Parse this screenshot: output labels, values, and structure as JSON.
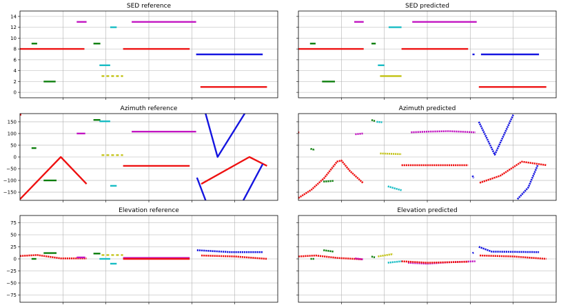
{
  "figure": {
    "titles": [
      "SED reference",
      "SED predicted",
      "Azimuth reference",
      "Azimuth predicted",
      "Elevation reference",
      "Elevation predicted"
    ]
  },
  "colors": {
    "red": "#ee1111",
    "green": "#0a7d0a",
    "magenta": "#c216c2",
    "cyan": "#17bcc4",
    "yellow": "#c4c41a",
    "blue": "#1515e0",
    "grid": "#b0b0b0"
  },
  "chart_data": [
    {
      "type": "scatter",
      "title": "SED reference",
      "xlim": [
        0,
        600
      ],
      "ylim": [
        -1,
        15
      ],
      "yticks": [
        0,
        2,
        4,
        6,
        8,
        10,
        12,
        14
      ],
      "xgrid": [
        100,
        200,
        300,
        400,
        500
      ],
      "grid": true,
      "segments": [
        {
          "color": "red",
          "x": [
            0,
            150
          ],
          "y": [
            8,
            8
          ]
        },
        {
          "color": "green",
          "x": [
            27,
            40
          ],
          "y": [
            9,
            9
          ]
        },
        {
          "color": "green",
          "x": [
            55,
            83
          ],
          "y": [
            2,
            2
          ]
        },
        {
          "color": "magenta",
          "x": [
            132,
            155
          ],
          "y": [
            13,
            13
          ]
        },
        {
          "color": "green",
          "x": [
            171,
            187
          ],
          "y": [
            9,
            9
          ]
        },
        {
          "color": "cyan",
          "x": [
            185,
            210
          ],
          "y": [
            5,
            5
          ]
        },
        {
          "color": "cyan",
          "x": [
            210,
            225
          ],
          "y": [
            12,
            12
          ]
        },
        {
          "color": "yellow",
          "x": [
            190,
            240
          ],
          "y": [
            3,
            3
          ],
          "dashed": true
        },
        {
          "color": "red",
          "x": [
            240,
            395
          ],
          "y": [
            8,
            8
          ]
        },
        {
          "color": "magenta",
          "x": [
            260,
            410
          ],
          "y": [
            13,
            13
          ]
        },
        {
          "color": "blue",
          "x": [
            410,
            565
          ],
          "y": [
            7,
            7
          ]
        },
        {
          "color": "red",
          "x": [
            420,
            575
          ],
          "y": [
            1,
            1
          ]
        }
      ]
    },
    {
      "type": "scatter",
      "title": "SED predicted",
      "xlim": [
        0,
        600
      ],
      "ylim": [
        -1,
        15
      ],
      "yticks": [
        0,
        2,
        4,
        6,
        8,
        10,
        12,
        14
      ],
      "xgrid": [
        100,
        200,
        300,
        400,
        500
      ],
      "grid": true,
      "segments": [
        {
          "color": "red",
          "x": [
            0,
            152
          ],
          "y": [
            8,
            8
          ]
        },
        {
          "color": "green",
          "x": [
            27,
            40
          ],
          "y": [
            9,
            9
          ]
        },
        {
          "color": "green",
          "x": [
            55,
            85
          ],
          "y": [
            2,
            2
          ]
        },
        {
          "color": "magenta",
          "x": [
            130,
            152
          ],
          "y": [
            13,
            13
          ]
        },
        {
          "color": "green",
          "x": [
            170,
            180
          ],
          "y": [
            9,
            9
          ]
        },
        {
          "color": "cyan",
          "x": [
            185,
            200
          ],
          "y": [
            5,
            5
          ]
        },
        {
          "color": "cyan",
          "x": [
            210,
            240
          ],
          "y": [
            12,
            12
          ]
        },
        {
          "color": "yellow",
          "x": [
            190,
            240
          ],
          "y": [
            3,
            3
          ]
        },
        {
          "color": "red",
          "x": [
            240,
            395
          ],
          "y": [
            8,
            8
          ]
        },
        {
          "color": "magenta",
          "x": [
            265,
            415
          ],
          "y": [
            13,
            13
          ]
        },
        {
          "color": "blue",
          "x": [
            405,
            410
          ],
          "y": [
            7,
            7
          ]
        },
        {
          "color": "blue",
          "x": [
            425,
            560
          ],
          "y": [
            7,
            7
          ]
        },
        {
          "color": "red",
          "x": [
            420,
            577
          ],
          "y": [
            1,
            1
          ]
        }
      ]
    },
    {
      "type": "scatter",
      "title": "Azimuth reference",
      "xlim": [
        0,
        600
      ],
      "ylim": [
        -185,
        185
      ],
      "yticks": [
        -150,
        -100,
        -50,
        0,
        50,
        100,
        150
      ],
      "xgrid": [
        100,
        200,
        300,
        400,
        500
      ],
      "grid": true,
      "segments": [
        {
          "color": "red",
          "x": [
            0,
            3
          ],
          "y": [
            180,
            180
          ]
        },
        {
          "color": "red",
          "x": [
            0,
            95,
            155
          ],
          "y": [
            -180,
            0,
            -115
          ]
        },
        {
          "color": "green",
          "x": [
            27,
            38
          ],
          "y": [
            38,
            38
          ]
        },
        {
          "color": "green",
          "x": [
            55,
            85
          ],
          "y": [
            -100,
            -100
          ]
        },
        {
          "color": "magenta",
          "x": [
            132,
            152
          ],
          "y": [
            100,
            100
          ]
        },
        {
          "color": "green",
          "x": [
            171,
            187
          ],
          "y": [
            158,
            158
          ]
        },
        {
          "color": "cyan",
          "x": [
            185,
            210
          ],
          "y": [
            152,
            152
          ]
        },
        {
          "color": "yellow",
          "x": [
            190,
            240
          ],
          "y": [
            8,
            8
          ],
          "dashed": true
        },
        {
          "color": "cyan",
          "x": [
            210,
            225
          ],
          "y": [
            -123,
            -123
          ]
        },
        {
          "color": "magenta",
          "x": [
            260,
            410
          ],
          "y": [
            108,
            108
          ]
        },
        {
          "color": "red",
          "x": [
            240,
            395
          ],
          "y": [
            -38,
            -38
          ]
        },
        {
          "color": "blue",
          "x": [
            412,
            432
          ],
          "y": [
            -88,
            -185
          ]
        },
        {
          "color": "blue",
          "x": [
            432,
            460,
            523
          ],
          "y": [
            185,
            0,
            185
          ]
        },
        {
          "color": "red",
          "x": [
            422,
            534,
            575
          ],
          "y": [
            -115,
            0,
            -38
          ]
        },
        {
          "color": "blue",
          "x": [
            520,
            565
          ],
          "y": [
            -185,
            -30
          ]
        }
      ]
    },
    {
      "type": "scatter",
      "title": "Azimuth predicted",
      "xlim": [
        0,
        600
      ],
      "ylim": [
        -185,
        185
      ],
      "yticks": [
        -150,
        -100,
        -50,
        0,
        50,
        100,
        150
      ],
      "xgrid": [
        100,
        200,
        300,
        400,
        500
      ],
      "grid": true,
      "segments": [
        {
          "color": "red",
          "x": [
            0,
            2
          ],
          "y": [
            105,
            105
          ]
        },
        {
          "color": "red",
          "x": [
            0,
            30,
            60,
            90,
            100,
            120,
            150
          ],
          "y": [
            -175,
            -140,
            -90,
            -20,
            -15,
            -60,
            -110
          ],
          "dots": true
        },
        {
          "color": "green",
          "x": [
            28,
            38
          ],
          "y": [
            35,
            30
          ],
          "dots": true
        },
        {
          "color": "green",
          "x": [
            58,
            82
          ],
          "y": [
            -105,
            -102
          ],
          "dots": true
        },
        {
          "color": "magenta",
          "x": [
            132,
            150
          ],
          "y": [
            97,
            100
          ],
          "dots": true
        },
        {
          "color": "green",
          "x": [
            170,
            178
          ],
          "y": [
            158,
            153
          ],
          "dots": true
        },
        {
          "color": "cyan",
          "x": [
            182,
            195
          ],
          "y": [
            150,
            148
          ],
          "dots": true
        },
        {
          "color": "yellow",
          "x": [
            190,
            240
          ],
          "y": [
            15,
            12
          ],
          "dots": true
        },
        {
          "color": "cyan",
          "x": [
            208,
            240
          ],
          "y": [
            -125,
            -142
          ],
          "dots": true
        },
        {
          "color": "magenta",
          "x": [
            262,
            300,
            350,
            412
          ],
          "y": [
            105,
            108,
            110,
            105
          ],
          "dots": true
        },
        {
          "color": "red",
          "x": [
            240,
            300,
            395
          ],
          "y": [
            -35,
            -35,
            -35
          ],
          "dots": true
        },
        {
          "color": "blue",
          "x": [
            405,
            408
          ],
          "y": [
            -80,
            -90
          ],
          "dots": true
        },
        {
          "color": "blue",
          "x": [
            420,
            457,
            500
          ],
          "y": [
            150,
            10,
            180
          ],
          "dots": true
        },
        {
          "color": "red",
          "x": [
            422,
            470,
            520,
            577
          ],
          "y": [
            -110,
            -80,
            -20,
            -35
          ],
          "dots": true
        },
        {
          "color": "blue",
          "x": [
            510,
            535,
            557
          ],
          "y": [
            -180,
            -130,
            -35
          ],
          "dots": true
        }
      ]
    },
    {
      "type": "scatter",
      "title": "Elevation reference",
      "xlim": [
        0,
        600
      ],
      "ylim": [
        -90,
        90
      ],
      "yticks": [
        -75,
        -50,
        -25,
        0,
        25,
        50,
        75
      ],
      "xgrid": [
        100,
        200,
        300,
        400,
        500
      ],
      "grid": true,
      "segments": [
        {
          "color": "red",
          "x": [
            0,
            40,
            95,
            155
          ],
          "y": [
            6,
            8,
            1,
            1
          ],
          "dots": true
        },
        {
          "color": "green",
          "x": [
            27,
            38
          ],
          "y": [
            0,
            0
          ]
        },
        {
          "color": "green",
          "x": [
            55,
            85
          ],
          "y": [
            12,
            12
          ]
        },
        {
          "color": "magenta",
          "x": [
            132,
            152
          ],
          "y": [
            3,
            3
          ]
        },
        {
          "color": "green",
          "x": [
            171,
            187
          ],
          "y": [
            11,
            11
          ]
        },
        {
          "color": "cyan",
          "x": [
            185,
            210
          ],
          "y": [
            0,
            0
          ]
        },
        {
          "color": "yellow",
          "x": [
            190,
            240
          ],
          "y": [
            8,
            8
          ],
          "dashed": true
        },
        {
          "color": "cyan",
          "x": [
            210,
            225
          ],
          "y": [
            -10,
            -10
          ]
        },
        {
          "color": "magenta",
          "x": [
            240,
            395
          ],
          "y": [
            2,
            2
          ]
        },
        {
          "color": "red",
          "x": [
            240,
            395
          ],
          "y": [
            0,
            0
          ]
        },
        {
          "color": "blue",
          "x": [
            412,
            490,
            565
          ],
          "y": [
            18,
            14,
            14
          ],
          "dots": true
        },
        {
          "color": "red",
          "x": [
            422,
            500,
            575
          ],
          "y": [
            7,
            5,
            0
          ],
          "dots": true
        }
      ]
    },
    {
      "type": "scatter",
      "title": "Elevation predicted",
      "xlim": [
        0,
        600
      ],
      "ylim": [
        -90,
        90
      ],
      "yticks": [
        -75,
        -50,
        -25,
        0,
        25,
        50,
        75
      ],
      "xgrid": [
        100,
        200,
        300,
        400,
        500
      ],
      "grid": true,
      "segments": [
        {
          "color": "red",
          "x": [
            0,
            40,
            90,
            150
          ],
          "y": [
            5,
            7,
            2,
            -1
          ],
          "dots": true
        },
        {
          "color": "green",
          "x": [
            28,
            38
          ],
          "y": [
            0,
            0
          ],
          "dots": true
        },
        {
          "color": "green",
          "x": [
            58,
            82
          ],
          "y": [
            18,
            15
          ],
          "dots": true
        },
        {
          "color": "magenta",
          "x": [
            132,
            150
          ],
          "y": [
            1,
            -1
          ],
          "dots": true
        },
        {
          "color": "green",
          "x": [
            170,
            178
          ],
          "y": [
            5,
            3
          ],
          "dots": true
        },
        {
          "color": "yellow",
          "x": [
            185,
            220
          ],
          "y": [
            5,
            10
          ],
          "dots": true
        },
        {
          "color": "cyan",
          "x": [
            208,
            240
          ],
          "y": [
            -8,
            -5
          ],
          "dots": true
        },
        {
          "color": "magenta",
          "x": [
            255,
            300,
            350,
            412
          ],
          "y": [
            -8,
            -10,
            -7,
            -5
          ],
          "dots": true
        },
        {
          "color": "red",
          "x": [
            240,
            300,
            395
          ],
          "y": [
            -5,
            -8,
            -6
          ],
          "dots": true
        },
        {
          "color": "blue",
          "x": [
            405,
            408
          ],
          "y": [
            12,
            13
          ],
          "dots": true
        },
        {
          "color": "blue",
          "x": [
            420,
            450,
            560
          ],
          "y": [
            25,
            15,
            14
          ],
          "dots": true
        },
        {
          "color": "red",
          "x": [
            422,
            500,
            577
          ],
          "y": [
            7,
            5,
            0
          ],
          "dots": true
        }
      ]
    }
  ]
}
